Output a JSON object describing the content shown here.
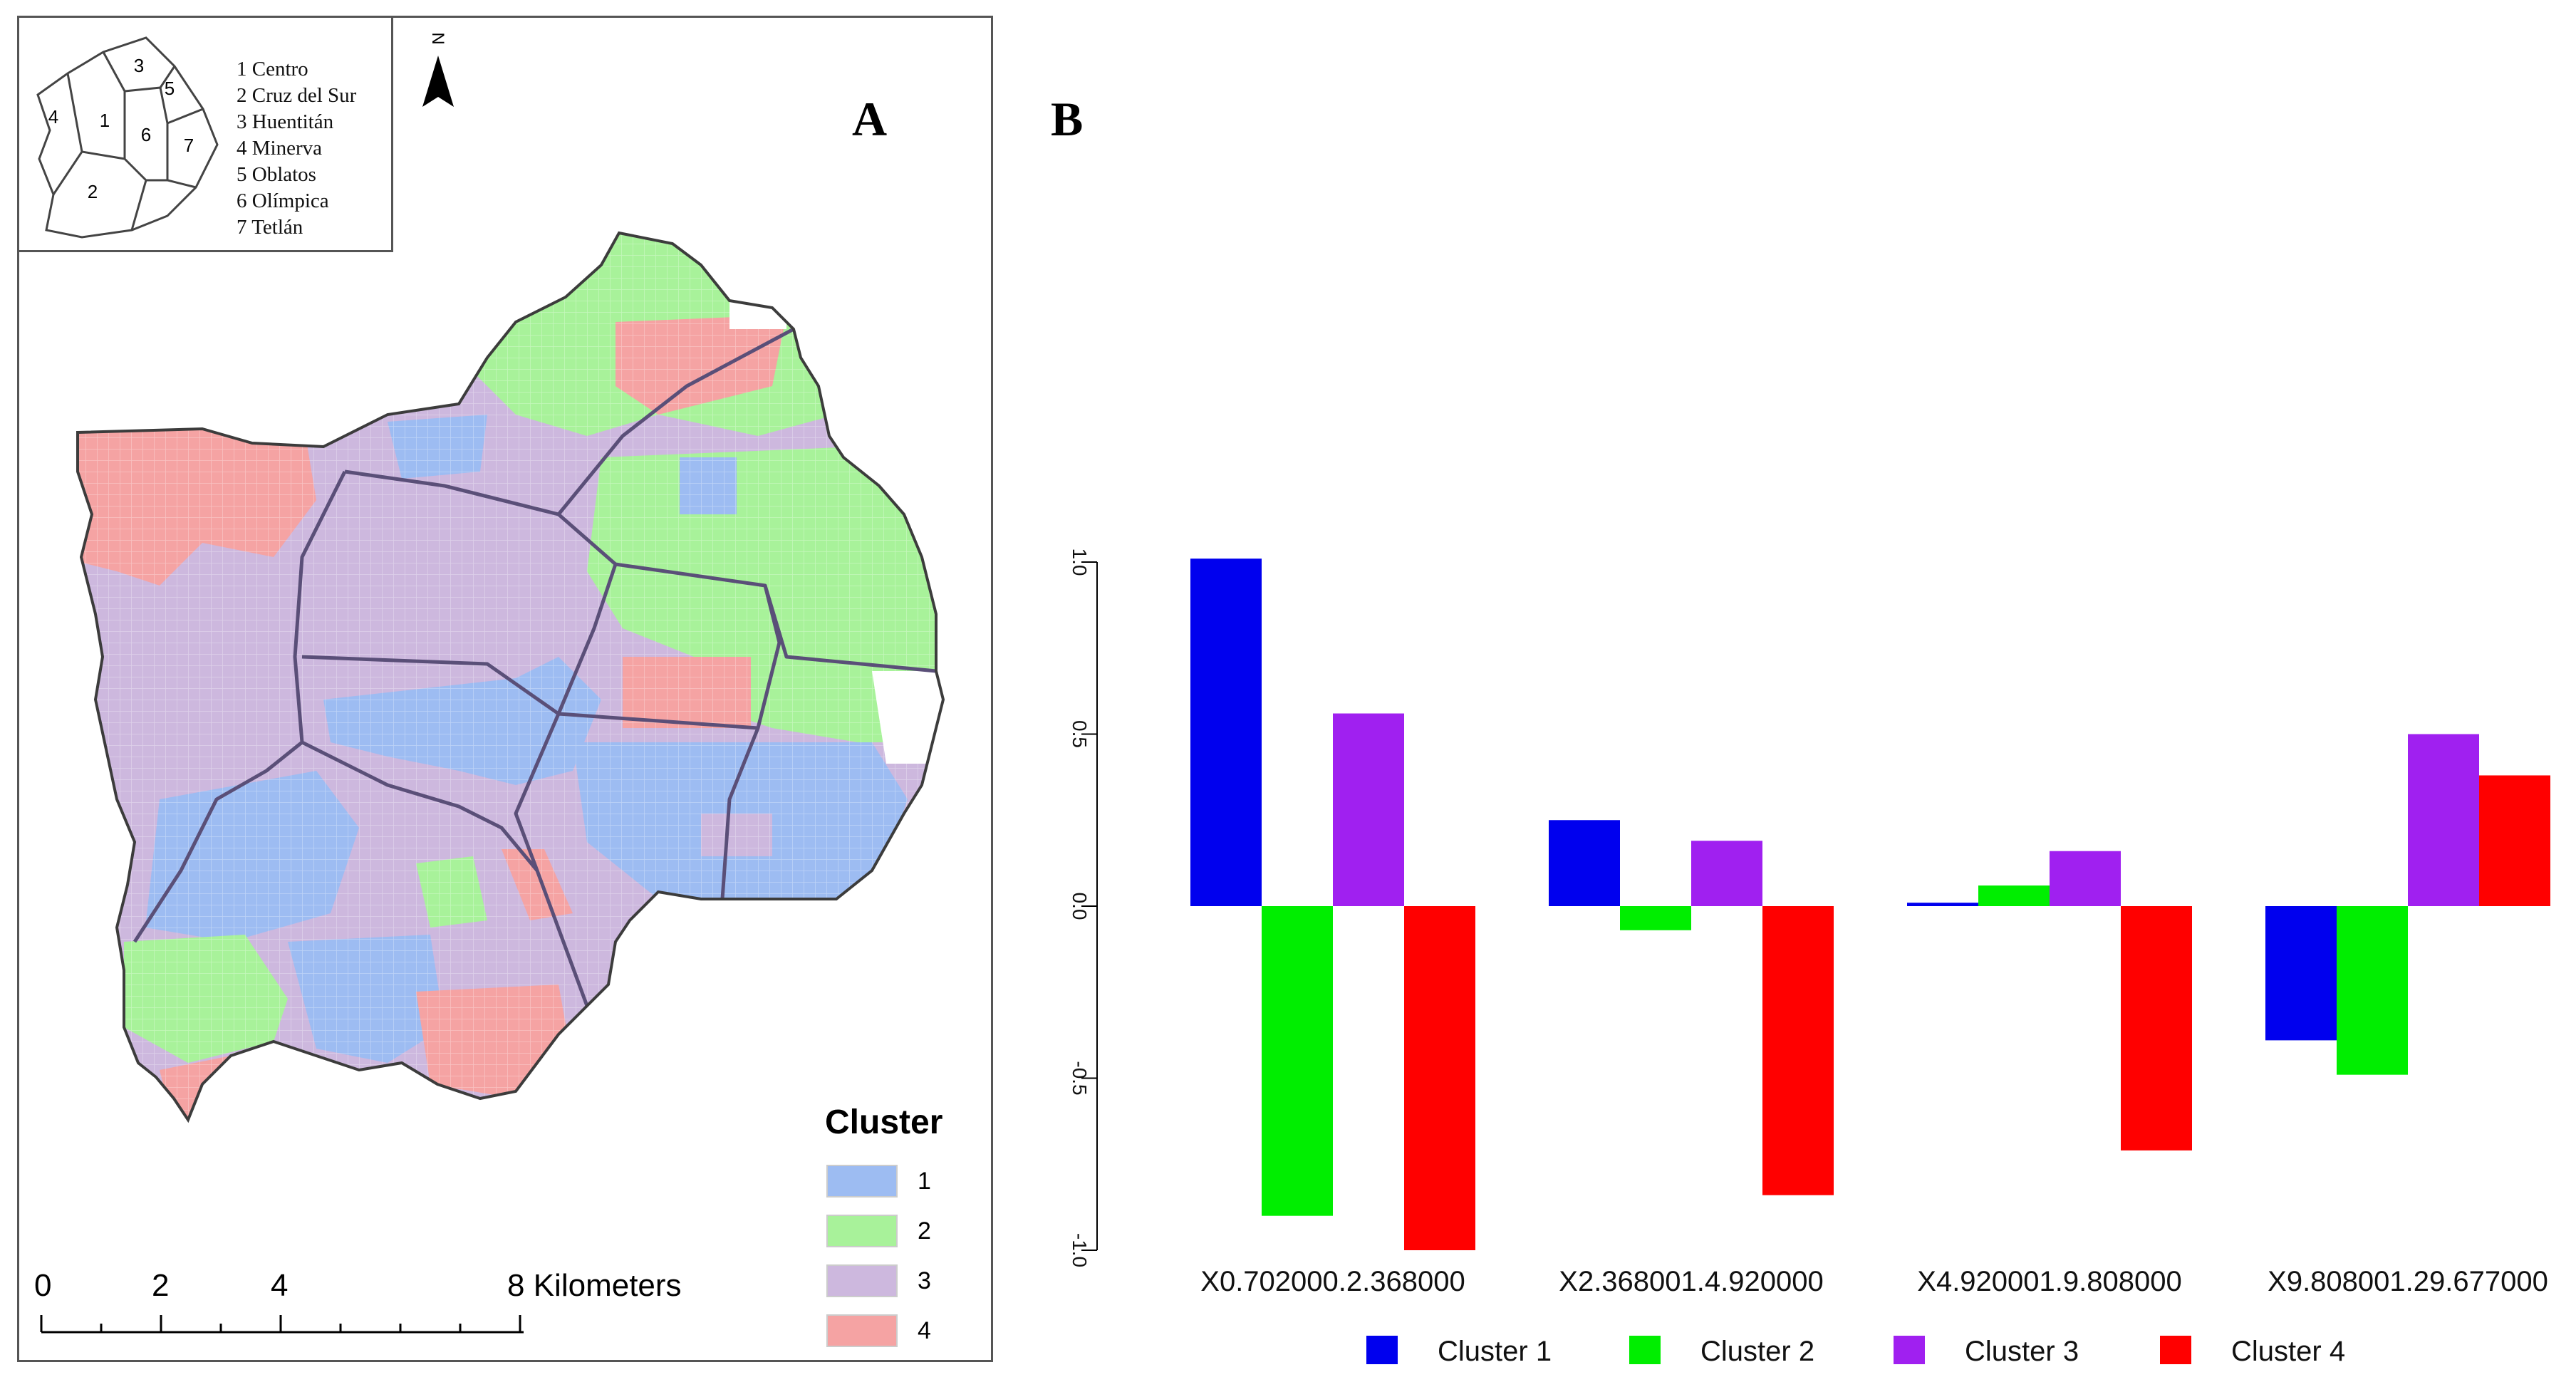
{
  "panel_labels": {
    "a": "A",
    "b": "B"
  },
  "inset": {
    "items": [
      "1 Centro",
      "2 Cruz del Sur",
      "3 Huentitán",
      "4 Minerva",
      "5 Oblatos",
      "6 Olímpica",
      "7 Tetlán"
    ],
    "zone_numbers": [
      "1",
      "2",
      "3",
      "4",
      "5",
      "6",
      "7"
    ],
    "north_label": "N"
  },
  "map_legend": {
    "title": "Cluster",
    "items": [
      {
        "label": "1",
        "color": "#9dbcf2"
      },
      {
        "label": "2",
        "color": "#a8f29a"
      },
      {
        "label": "3",
        "color": "#cdb8de"
      },
      {
        "label": "4",
        "color": "#f5a3a3"
      }
    ]
  },
  "scale_bar": {
    "ticks": [
      "0",
      "2",
      "4"
    ],
    "end_label": "8 Kilometers"
  },
  "chart_data": {
    "type": "bar",
    "categories": [
      "X0.702000.2.368000",
      "X2.368001.4.920000",
      "X4.920001.9.808000",
      "X9.808001.29.677000"
    ],
    "series": [
      {
        "name": "Cluster 1",
        "color": "#0000ee",
        "values": [
          1.01,
          0.25,
          0.01,
          -0.39
        ]
      },
      {
        "name": "Cluster 2",
        "color": "#00ee00",
        "values": [
          -0.9,
          -0.07,
          0.06,
          -0.49
        ]
      },
      {
        "name": "Cluster 3",
        "color": "#a020f0",
        "values": [
          0.56,
          0.19,
          0.16,
          0.5
        ]
      },
      {
        "name": "Cluster 4",
        "color": "#ff0000",
        "values": [
          -1.0,
          -0.84,
          -0.71,
          0.38
        ]
      }
    ],
    "yticks": [
      "-1.0",
      "-0.5",
      "0.0",
      "0.5",
      "1.0"
    ],
    "ylim": [
      -1.0,
      1.0
    ],
    "title": "",
    "xlabel": "",
    "ylabel": ""
  }
}
